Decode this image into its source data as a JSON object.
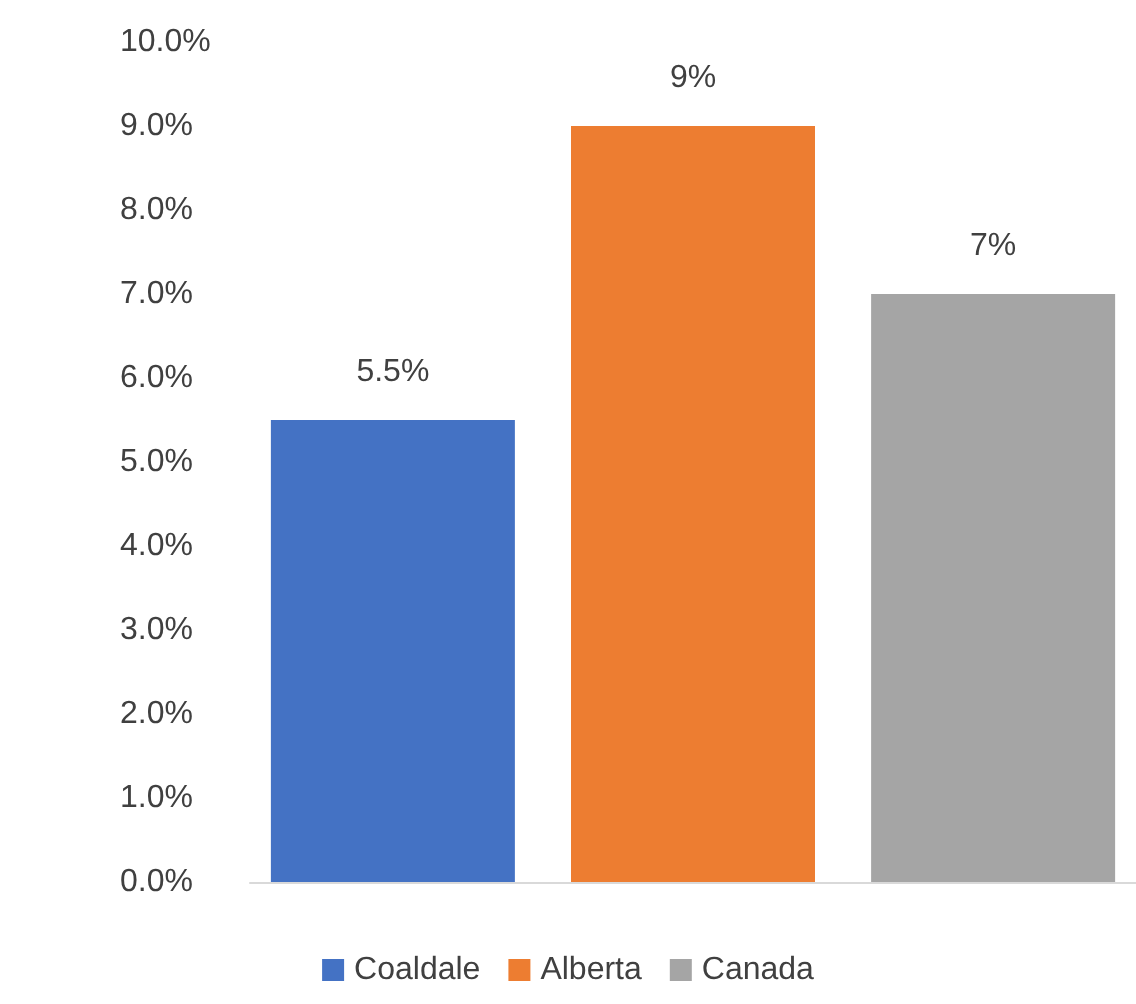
{
  "chart_data": {
    "type": "bar",
    "categories": [
      null
    ],
    "series": [
      {
        "name": "Coaldale",
        "color": "#4472c4",
        "values": [
          5.5
        ],
        "value_labels": [
          "5.5%"
        ]
      },
      {
        "name": "Alberta",
        "color": "#ed7d31",
        "values": [
          9
        ],
        "value_labels": [
          "9%"
        ]
      },
      {
        "name": "Canada",
        "color": "#a5a5a5",
        "values": [
          7
        ],
        "value_labels": [
          "7%"
        ]
      }
    ],
    "ylim": [
      0,
      10
    ],
    "yticks": [
      {
        "value": 0,
        "label": "0.0%"
      },
      {
        "value": 1,
        "label": "1.0%"
      },
      {
        "value": 2,
        "label": "2.0%"
      },
      {
        "value": 3,
        "label": "3.0%"
      },
      {
        "value": 4,
        "label": "4.0%"
      },
      {
        "value": 5,
        "label": "5.0%"
      },
      {
        "value": 6,
        "label": "6.0%"
      },
      {
        "value": 7,
        "label": "7.0%"
      },
      {
        "value": 8,
        "label": "8.0%"
      },
      {
        "value": 9,
        "label": "9.0%"
      },
      {
        "value": 10,
        "label": "10.0%"
      }
    ],
    "grid": false,
    "legend": "bottom"
  }
}
